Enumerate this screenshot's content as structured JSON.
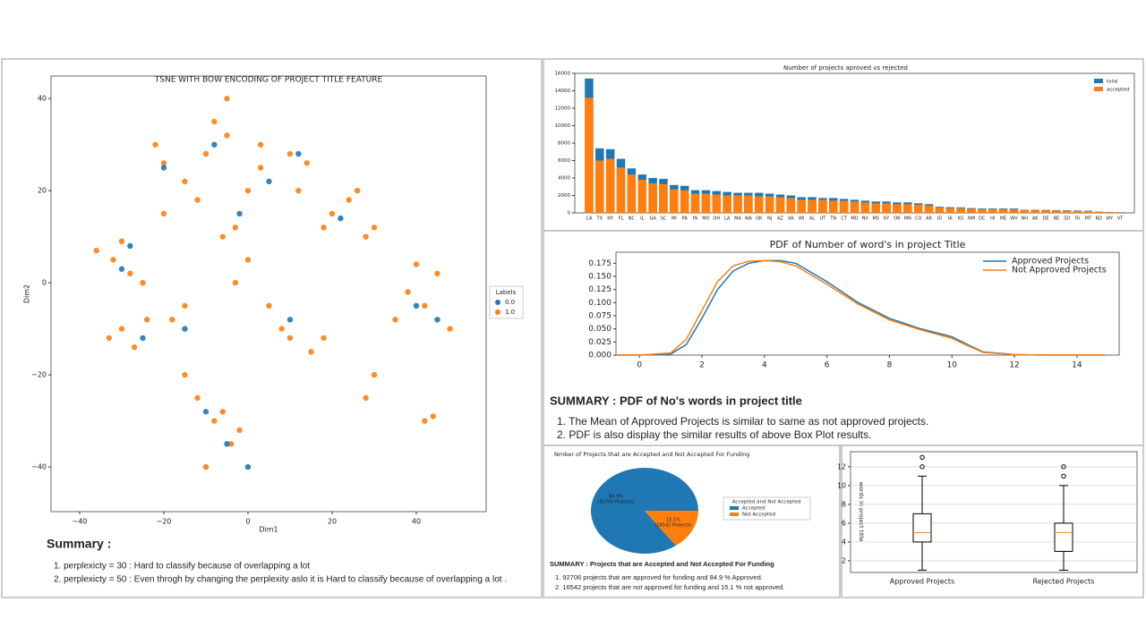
{
  "chart_data": [
    {
      "type": "scatter",
      "title": "TSNE WITH BOW ENCODING OF PROJECT TITLE FEATURE",
      "xlabel": "Dim1",
      "ylabel": "Dim2",
      "xlim": [
        -46.8,
        56.6
      ],
      "ylim": [
        -49.7,
        44.9
      ],
      "xticks": [
        {
          "value": -40,
          "label": "−40"
        },
        {
          "value": -20,
          "label": "−20"
        },
        0,
        20,
        40
      ],
      "yticks": [
        {
          "value": -40,
          "label": "−40"
        },
        {
          "value": -20,
          "label": "−20"
        },
        0,
        20,
        40
      ],
      "legend_title": "Labels",
      "series": [
        {
          "name": "0.0",
          "color": "#1f77b4",
          "x": [
            -8,
            -2,
            -20,
            5,
            -30,
            -25,
            -10,
            -5,
            40,
            45,
            12,
            22,
            -15,
            0,
            10,
            -28
          ],
          "values": [
            30,
            15,
            25,
            22,
            3,
            -12,
            -28,
            -35,
            -5,
            -8,
            28,
            14,
            -10,
            -40,
            -8,
            8
          ]
        },
        {
          "name": "1.0",
          "color": "#ff7f0e",
          "x": [
            -10,
            -5,
            -15,
            0,
            -8,
            -20,
            -12,
            3,
            -3,
            -6,
            -32,
            -28,
            -36,
            -25,
            -30,
            -30,
            -27,
            -33,
            -24,
            -12,
            -8,
            -4,
            -15,
            -10,
            -6,
            -2,
            38,
            42,
            45,
            35,
            48,
            40,
            20,
            24,
            18,
            26,
            10,
            14,
            12,
            30,
            28,
            8,
            10,
            5,
            -15,
            -18,
            15,
            18,
            28,
            30,
            42,
            44,
            0,
            -3,
            3,
            -20,
            -22,
            -5
          ],
          "values": [
            28,
            32,
            22,
            20,
            35,
            26,
            18,
            25,
            12,
            10,
            5,
            2,
            7,
            0,
            9,
            -10,
            -14,
            -12,
            -8,
            -25,
            -30,
            -35,
            -20,
            -40,
            -28,
            -32,
            -2,
            -5,
            2,
            -8,
            -10,
            4,
            15,
            18,
            12,
            20,
            28,
            26,
            20,
            -20,
            -25,
            -10,
            -12,
            -5,
            -5,
            -8,
            -15,
            -12,
            10,
            12,
            -30,
            -29,
            5,
            0,
            30,
            15,
            30,
            40
          ]
        }
      ],
      "summary_title": "Summary :",
      "notes": [
        "1.  perplexicty = 30 : Hard to classify because of overlapping a lot",
        "2.  perplexicty = 50 : Even throgh by changing the perplexity aslo it is Hard to classify because of overlapping a lot ."
      ]
    },
    {
      "type": "bar",
      "title": "Number of projects aproved vs rejected",
      "categories": [
        "CA",
        "TX",
        "NY",
        "FL",
        "NC",
        "IL",
        "GA",
        "SC",
        "MI",
        "PA",
        "IN",
        "MO",
        "OH",
        "LA",
        "MA",
        "WA",
        "OK",
        "NJ",
        "AZ",
        "VA",
        "WI",
        "AL",
        "UT",
        "TN",
        "CT",
        "MD",
        "NV",
        "MS",
        "KY",
        "OR",
        "MN",
        "CO",
        "AR",
        "ID",
        "IA",
        "KS",
        "NM",
        "DC",
        "HI",
        "ME",
        "WV",
        "NH",
        "AK",
        "DE",
        "NE",
        "SD",
        "RI",
        "MT",
        "ND",
        "WY",
        "VT"
      ],
      "ylim": [
        0,
        16000
      ],
      "yticks": [
        0,
        2000,
        4000,
        6000,
        8000,
        10000,
        12000,
        14000,
        16000
      ],
      "legend": "upper right",
      "series": [
        {
          "name": "total",
          "color": "#1f77b4",
          "values": [
            15400,
            7400,
            7300,
            6200,
            5100,
            4400,
            4000,
            3900,
            3200,
            3100,
            2600,
            2600,
            2500,
            2400,
            2300,
            2300,
            2300,
            2200,
            2100,
            2000,
            1800,
            1800,
            1700,
            1700,
            1600,
            1500,
            1400,
            1300,
            1300,
            1200,
            1200,
            1100,
            1000,
            700,
            650,
            630,
            550,
            500,
            500,
            500,
            500,
            350,
            350,
            340,
            310,
            300,
            280,
            250,
            140,
            100,
            80
          ]
        },
        {
          "name": "accepted",
          "color": "#ff7f0e",
          "values": [
            13200,
            6000,
            6200,
            5200,
            4400,
            3800,
            3400,
            3300,
            2700,
            2600,
            2200,
            2200,
            2100,
            2000,
            2000,
            2000,
            1900,
            1900,
            1800,
            1700,
            1500,
            1500,
            1500,
            1400,
            1400,
            1300,
            1200,
            1100,
            1100,
            1000,
            1000,
            950,
            850,
            600,
            550,
            540,
            470,
            420,
            430,
            430,
            420,
            300,
            290,
            290,
            270,
            250,
            240,
            210,
            120,
            85,
            70
          ]
        }
      ]
    },
    {
      "type": "line",
      "title": "PDF of Number of word's in project Title",
      "x": [
        -0.7,
        0,
        1,
        1.5,
        2,
        2.5,
        3,
        3.5,
        4,
        4.5,
        5,
        6,
        7,
        8,
        9,
        10,
        10.5,
        11,
        12,
        13,
        14,
        14.9
      ],
      "xlim": [
        -0.75,
        15.35
      ],
      "ylim": [
        0,
        0.196
      ],
      "xticks": [
        0,
        2,
        4,
        6,
        8,
        10,
        12,
        14
      ],
      "yticks": [
        {
          "value": 0,
          "label": "0.000"
        },
        {
          "value": 0.025,
          "label": "0.025"
        },
        {
          "value": 0.05,
          "label": "0.050"
        },
        {
          "value": 0.075,
          "label": "0.075"
        },
        {
          "value": 0.1,
          "label": "0.100"
        },
        {
          "value": 0.125,
          "label": "0.125"
        },
        {
          "value": 0.15,
          "label": "0.150"
        },
        {
          "value": 0.175,
          "label": "0.175"
        }
      ],
      "legend": "upper right",
      "series": [
        {
          "name": "Approved Projects",
          "color": "#1f77b4",
          "values": [
            0,
            0,
            0.002,
            0.02,
            0.07,
            0.125,
            0.16,
            0.175,
            0.18,
            0.18,
            0.175,
            0.14,
            0.1,
            0.07,
            0.05,
            0.035,
            0.02,
            0.006,
            0.001,
            0,
            0,
            0
          ]
        },
        {
          "name": "Not Approved Projects",
          "color": "#ff7f0e",
          "values": [
            0,
            0,
            0.004,
            0.03,
            0.085,
            0.14,
            0.17,
            0.179,
            0.18,
            0.178,
            0.17,
            0.135,
            0.097,
            0.067,
            0.048,
            0.032,
            0.018,
            0.005,
            0.001,
            0,
            0,
            0
          ]
        }
      ],
      "summary_title": "SUMMARY : PDF of No's words in project title",
      "notes": [
        "1.  The Mean of Approved Projects is similar to same as not approved projects.",
        "2.  PDF is also display the similar results of above Box Plot results."
      ]
    },
    {
      "type": "pie",
      "title": "Nmber of Projects that are Accepted and Not Accepted For Funding",
      "categories": [
        "Accepted",
        "Not Accepted"
      ],
      "values": [
        84.9,
        15.1
      ],
      "value_labels": [
        "84.9%",
        "15.1%"
      ],
      "count_labels": [
        "(92706 Projects)",
        "(16542 Projects)"
      ],
      "colors": [
        "#1f77b4",
        "#ff7f0e"
      ],
      "legend_title": "Accepted and Not Accepted",
      "summary_title": "SUMMARY : Projects that are Accepted and Not Accepted For Funding",
      "notes": [
        "1.  92706 projects that are approved for funding and 84.9 % Approved.",
        "2.  16542 projects that are not approved for funding and 15.1 % not approved."
      ]
    },
    {
      "type": "box",
      "ylabel": "words in project title",
      "categories": [
        "Approved Projects",
        "Rejected Projects"
      ],
      "ylim": [
        0.76,
        13.6
      ],
      "yticks": [
        2,
        4,
        6,
        8,
        10,
        12
      ],
      "grid": true,
      "boxes": [
        {
          "whislo": 1,
          "q1": 4,
          "med": 5,
          "q3": 7,
          "whishi": 11,
          "fliers": [
            12,
            13
          ]
        },
        {
          "whislo": 1,
          "q1": 3,
          "med": 5,
          "q3": 6,
          "whishi": 10,
          "fliers": [
            11,
            12
          ]
        }
      ]
    }
  ]
}
